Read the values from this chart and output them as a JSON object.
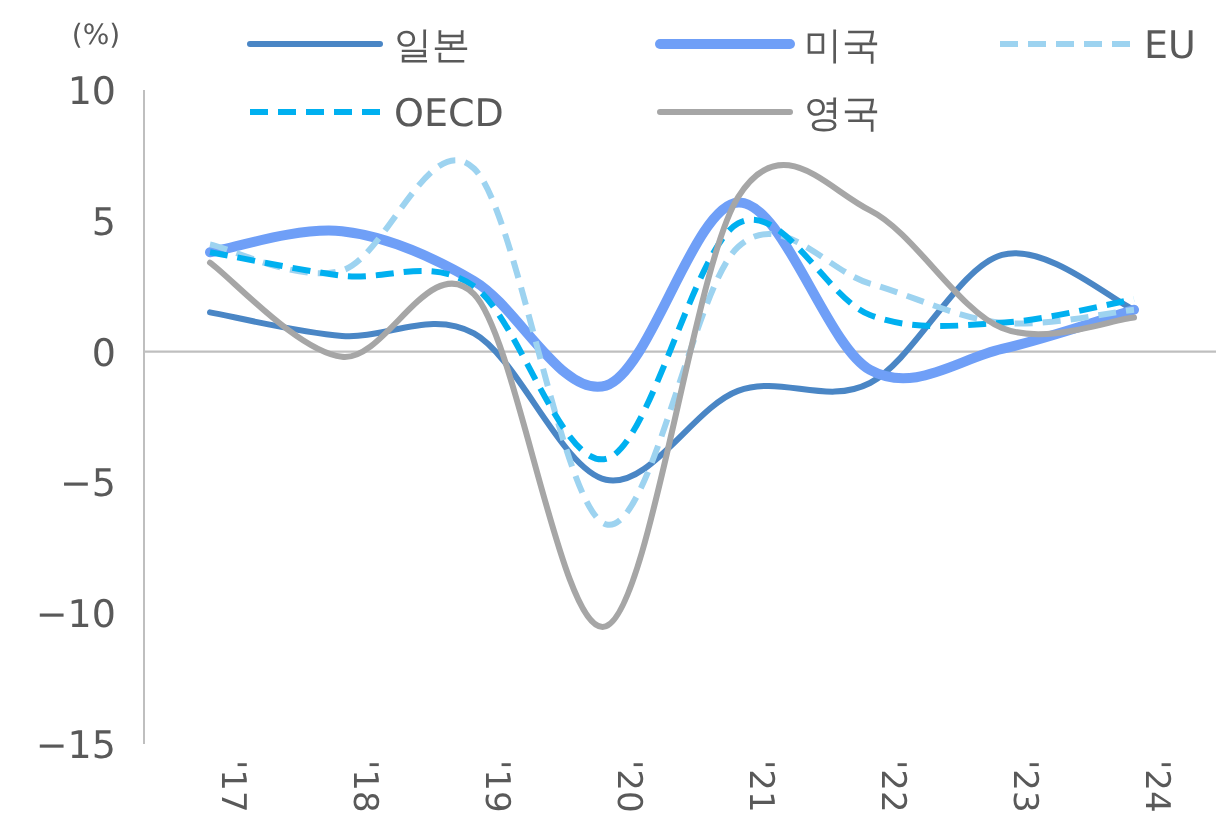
{
  "chart_data": {
    "type": "line",
    "ylabel": "(%)",
    "categories": [
      "'17",
      "'18",
      "'19",
      "'20",
      "'21",
      "'22",
      "'23",
      "'24"
    ],
    "series": [
      {
        "name": "일본",
        "color": "#4a86c5",
        "line_style": "solid",
        "values": [
          1.5,
          0.6,
          0.7,
          -4.9,
          -1.5,
          -1.2,
          3.7,
          1.6
        ]
      },
      {
        "name": "미국",
        "color": "#6f9ff7",
        "line_style": "solid",
        "values": [
          3.8,
          4.6,
          2.7,
          -1.3,
          5.7,
          -0.7,
          0.1,
          1.6
        ]
      },
      {
        "name": "EU",
        "color": "#9dd3f0",
        "line_style": "dashed",
        "values": [
          4.1,
          3.1,
          7.0,
          -6.6,
          4.0,
          2.6,
          1.1,
          1.6
        ]
      },
      {
        "name": "OECD",
        "color": "#00b0f0",
        "line_style": "dashed",
        "values": [
          3.8,
          2.9,
          2.5,
          -4.1,
          4.9,
          1.4,
          1.1,
          2.0
        ]
      },
      {
        "name": "영국",
        "color": "#a6a6a6",
        "line_style": "solid",
        "values": [
          3.4,
          -0.2,
          2.2,
          -10.5,
          5.9,
          5.4,
          0.9,
          1.3
        ]
      }
    ],
    "ylim": [
      -15,
      10
    ],
    "yticks": [
      -15,
      -10,
      -5,
      0,
      5,
      10
    ],
    "ref_lines": [
      {
        "axis": "y",
        "value": 0,
        "color": "#bfbfbf"
      }
    ],
    "legend": "top",
    "marker": "none",
    "grid": false
  }
}
